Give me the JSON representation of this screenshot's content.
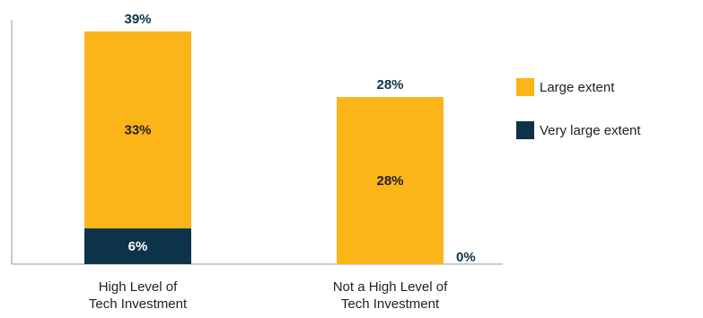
{
  "chart_data": {
    "type": "bar",
    "stacked": true,
    "categories": [
      [
        "High Level of",
        "Tech Investment"
      ],
      [
        "Not a High Level of",
        "Tech Investment"
      ]
    ],
    "series": [
      {
        "name": "Very large extent",
        "color": "#0d3349",
        "values": [
          6,
          0
        ],
        "labels": [
          "6%",
          "0%"
        ]
      },
      {
        "name": "Large extent",
        "color": "#fbb519",
        "values": [
          33,
          28
        ],
        "labels": [
          "33%",
          "28%"
        ]
      }
    ],
    "totals": [
      39,
      28
    ],
    "total_labels": [
      "39%",
      "28%"
    ],
    "ylim": [
      0,
      40
    ],
    "grid": false,
    "legend_position": "right",
    "legend_order": [
      "Large extent",
      "Very large extent"
    ],
    "label_colors": {
      "total": "#0d3349",
      "on_dark": "#ffffff",
      "on_light": "#222222"
    }
  }
}
